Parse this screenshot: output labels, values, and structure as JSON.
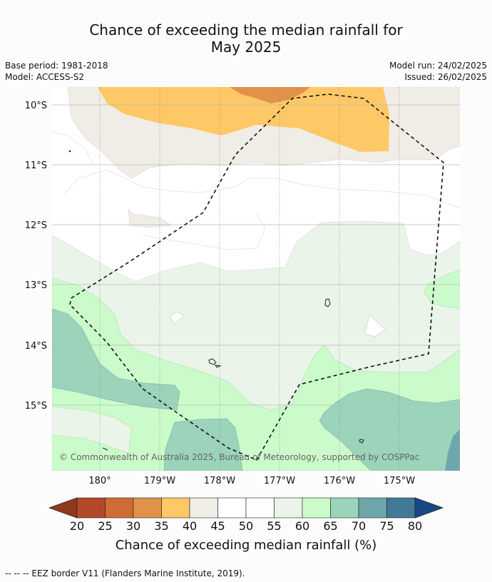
{
  "title_line1": "Chance of exceeding the median rainfall for",
  "title_line2": "May 2025",
  "base_period": "Base period: 1981-2018",
  "model": "Model: ACCESS-S2",
  "model_run": "Model run: 24/02/2025",
  "issued": "Issued: 26/02/2025",
  "lat_labels": [
    "10°S",
    "11°S",
    "12°S",
    "13°S",
    "14°S",
    "15°S"
  ],
  "lon_labels": [
    "180°",
    "179°W",
    "178°W",
    "177°W",
    "176°W",
    "175°W"
  ],
  "copyright": "© Commonwealth of Australia 2025, Bureau of Meteorology, supported by COSPPac",
  "colorbar": {
    "title": "Chance of exceeding median rainfall (%)",
    "ticks": [
      "20",
      "25",
      "30",
      "35",
      "40",
      "45",
      "50",
      "55",
      "60",
      "65",
      "70",
      "75",
      "80"
    ],
    "colors": [
      "#8e3a1d",
      "#b5482a",
      "#cf6b35",
      "#e0924a",
      "#fec866",
      "#f0ece6",
      "#ffffff",
      "#fcfdfc",
      "#eaf4e9",
      "#cbfbcb",
      "#9bd3bb",
      "#6fa6a9",
      "#417a96",
      "#174a84"
    ]
  },
  "footer": "--  --  -- EEZ border V11 (Flanders Marine Institute, 2019)."
}
